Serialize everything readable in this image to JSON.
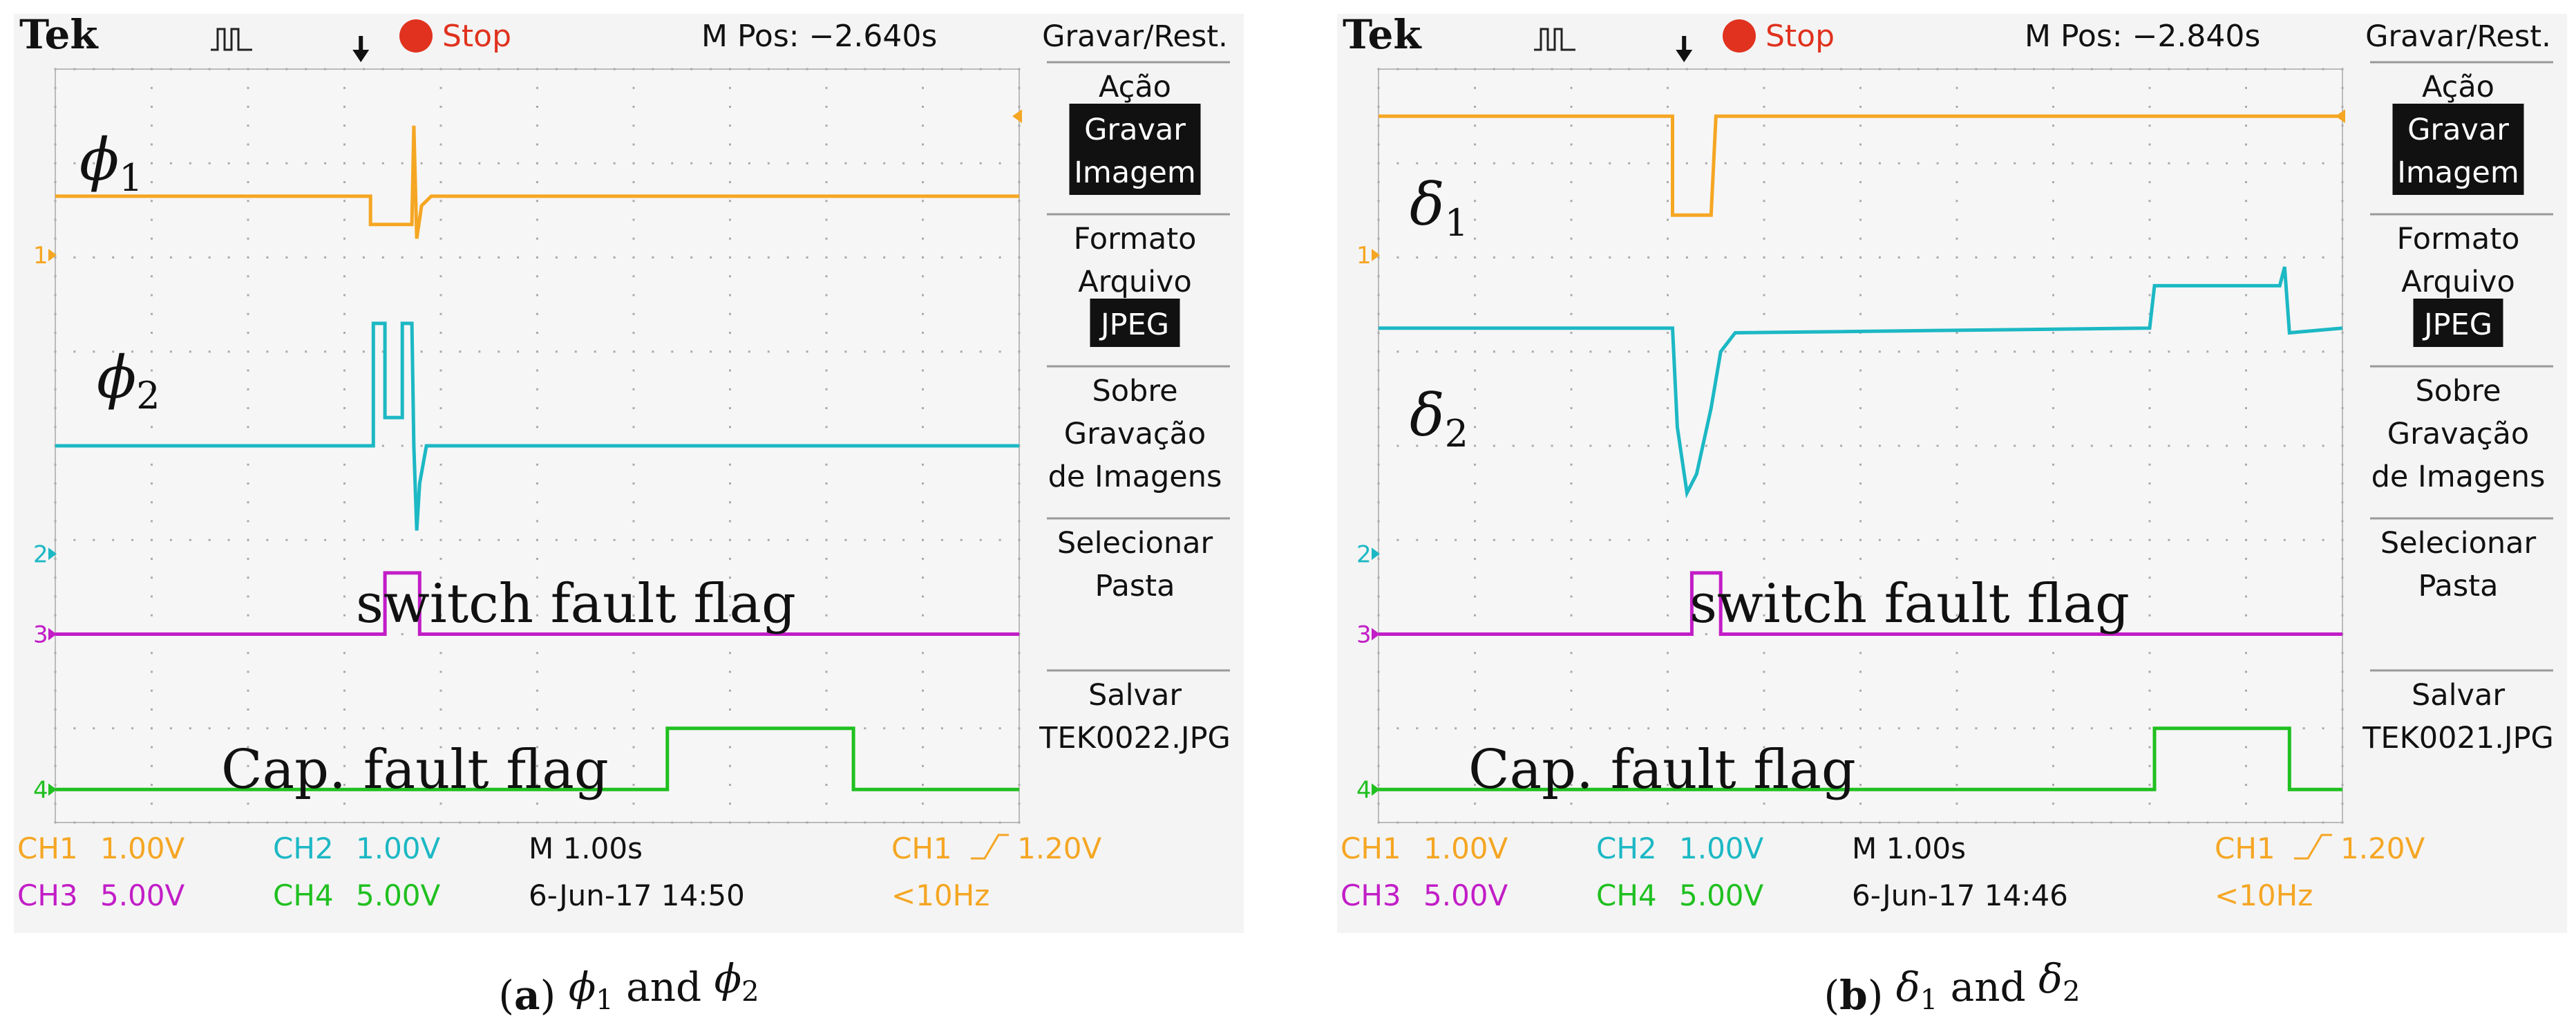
{
  "chart_data": [
    {
      "type": "line",
      "panel": "a",
      "caption_label": "a",
      "caption_sym1": "ϕ",
      "caption_sub1": "1",
      "caption_and": "and",
      "caption_sym2": "ϕ",
      "caption_sub2": "2",
      "brand": "Tek",
      "status": "Stop",
      "mpos": "M Pos: −2.640s",
      "menu": {
        "title": "Gravar/Rest.",
        "items": [
          {
            "lines": [
              "Ação"
            ],
            "highlight": [
              "Gravar",
              "Imagem"
            ]
          },
          {
            "lines": [
              "Formato",
              "Arquivo"
            ],
            "highlight": [
              "JPEG"
            ]
          },
          {
            "lines": [
              "Sobre",
              "Gravação",
              "de Imagens"
            ],
            "highlight": []
          },
          {
            "lines": [
              "Selecionar",
              "Pasta"
            ],
            "highlight": []
          },
          {
            "lines": [
              "Salvar",
              "TEK0022.JPG"
            ],
            "highlight": []
          }
        ]
      },
      "footer": {
        "ch1": "CH1",
        "ch1_scale": "1.00V",
        "ch2": "CH2",
        "ch2_scale": "1.00V",
        "timebase": "M 1.00s",
        "trigger_ch": "CH1",
        "trigger_level": "1.20V",
        "ch3": "CH3",
        "ch3_scale": "5.00V",
        "ch4": "CH4",
        "ch4_scale": "5.00V",
        "date": "6-Jun-17 14:50",
        "freq": "<10Hz"
      },
      "labels": {
        "trace1_sym": "ϕ",
        "trace1_sub": "1",
        "trace2_sym": "ϕ",
        "trace2_sub": "2",
        "trace3": "switch fault flag",
        "trace4": "Cap. fault flag"
      },
      "x_range": [
        0,
        10
      ],
      "y_range": [
        -4,
        4
      ],
      "series": [
        {
          "name": "CH1",
          "color": "#f5a623",
          "points": [
            [
              0,
              2.65
            ],
            [
              3.27,
              2.65
            ],
            [
              3.27,
              2.35
            ],
            [
              3.7,
              2.35
            ],
            [
              3.72,
              3.4
            ],
            [
              3.75,
              2.2
            ],
            [
              3.8,
              2.55
            ],
            [
              3.9,
              2.65
            ],
            [
              10,
              2.65
            ]
          ]
        },
        {
          "name": "CH2",
          "color": "#1cb8c4",
          "points": [
            [
              0,
              0.0
            ],
            [
              3.3,
              0.0
            ],
            [
              3.3,
              1.3
            ],
            [
              3.42,
              1.3
            ],
            [
              3.42,
              0.3
            ],
            [
              3.6,
              0.3
            ],
            [
              3.6,
              1.3
            ],
            [
              3.7,
              1.3
            ],
            [
              3.72,
              0.0
            ],
            [
              3.75,
              -0.9
            ],
            [
              3.78,
              -0.4
            ],
            [
              3.85,
              0.0
            ],
            [
              10,
              0.0
            ]
          ]
        },
        {
          "name": "CH3",
          "color": "#c21dc7",
          "points": [
            [
              0,
              -2.0
            ],
            [
              3.42,
              -2.0
            ],
            [
              3.42,
              -1.35
            ],
            [
              3.78,
              -1.35
            ],
            [
              3.78,
              -2.0
            ],
            [
              10,
              -2.0
            ]
          ]
        },
        {
          "name": "CH4",
          "color": "#20c020",
          "points": [
            [
              0,
              -3.65
            ],
            [
              6.35,
              -3.65
            ],
            [
              6.35,
              -3.0
            ],
            [
              8.28,
              -3.0
            ],
            [
              8.28,
              -3.65
            ],
            [
              10,
              -3.65
            ]
          ]
        }
      ]
    },
    {
      "type": "line",
      "panel": "b",
      "caption_label": "b",
      "caption_sym1": "δ",
      "caption_sub1": "1",
      "caption_and": "and",
      "caption_sym2": "δ",
      "caption_sub2": "2",
      "brand": "Tek",
      "status": "Stop",
      "mpos": "M Pos: −2.840s",
      "menu": {
        "title": "Gravar/Rest.",
        "items": [
          {
            "lines": [
              "Ação"
            ],
            "highlight": [
              "Gravar",
              "Imagem"
            ]
          },
          {
            "lines": [
              "Formato",
              "Arquivo"
            ],
            "highlight": [
              "JPEG"
            ]
          },
          {
            "lines": [
              "Sobre",
              "Gravação",
              "de Imagens"
            ],
            "highlight": []
          },
          {
            "lines": [
              "Selecionar",
              "Pasta"
            ],
            "highlight": []
          },
          {
            "lines": [
              "Salvar",
              "TEK0021.JPG"
            ],
            "highlight": []
          }
        ]
      },
      "footer": {
        "ch1": "CH1",
        "ch1_scale": "1.00V",
        "ch2": "CH2",
        "ch2_scale": "1.00V",
        "timebase": "M 1.00s",
        "trigger_ch": "CH1",
        "trigger_level": "1.20V",
        "ch3": "CH3",
        "ch3_scale": "5.00V",
        "ch4": "CH4",
        "ch4_scale": "5.00V",
        "date": "6-Jun-17 14:46",
        "freq": "<10Hz"
      },
      "labels": {
        "trace1_sym": "δ",
        "trace1_sub": "1",
        "trace2_sym": "δ",
        "trace2_sub": "2",
        "trace3": "switch fault flag",
        "trace4": "Cap. fault flag"
      },
      "x_range": [
        0,
        10
      ],
      "y_range": [
        -4,
        4
      ],
      "series": [
        {
          "name": "CH1",
          "color": "#f5a623",
          "points": [
            [
              0,
              3.5
            ],
            [
              3.05,
              3.5
            ],
            [
              3.05,
              2.45
            ],
            [
              3.45,
              2.45
            ],
            [
              3.5,
              3.5
            ],
            [
              10,
              3.5
            ]
          ]
        },
        {
          "name": "CH2",
          "color": "#1cb8c4",
          "points": [
            [
              0,
              1.25
            ],
            [
              3.05,
              1.25
            ],
            [
              3.1,
              0.2
            ],
            [
              3.2,
              -0.5
            ],
            [
              3.3,
              -0.3
            ],
            [
              3.45,
              0.4
            ],
            [
              3.55,
              1.0
            ],
            [
              3.7,
              1.2
            ],
            [
              8.0,
              1.25
            ],
            [
              8.05,
              1.7
            ],
            [
              9.35,
              1.7
            ],
            [
              9.4,
              1.9
            ],
            [
              9.45,
              1.2
            ],
            [
              10,
              1.25
            ]
          ]
        },
        {
          "name": "CH3",
          "color": "#c21dc7",
          "points": [
            [
              0,
              -2.0
            ],
            [
              3.25,
              -2.0
            ],
            [
              3.25,
              -1.35
            ],
            [
              3.55,
              -1.35
            ],
            [
              3.55,
              -2.0
            ],
            [
              10,
              -2.0
            ]
          ]
        },
        {
          "name": "CH4",
          "color": "#20c020",
          "points": [
            [
              0,
              -3.65
            ],
            [
              8.05,
              -3.65
            ],
            [
              8.05,
              -3.0
            ],
            [
              9.45,
              -3.0
            ],
            [
              9.45,
              -3.65
            ],
            [
              10,
              -3.65
            ]
          ]
        }
      ]
    }
  ]
}
